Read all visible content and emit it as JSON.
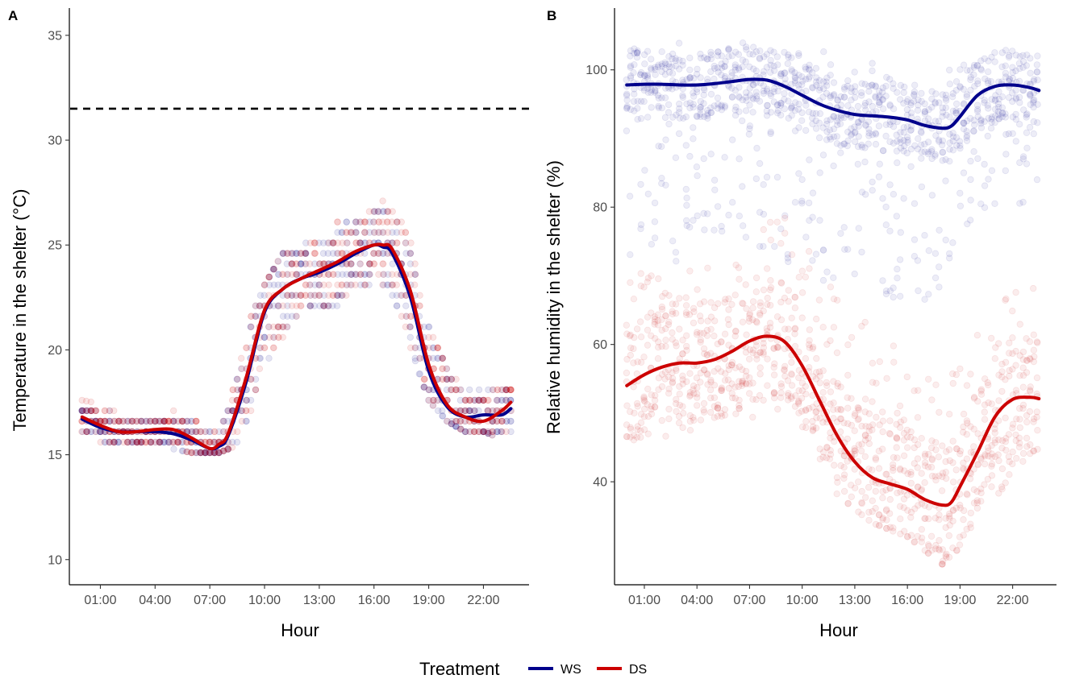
{
  "legend": {
    "title": "Treatment",
    "entries": [
      {
        "label": "WS",
        "color": "#00008B"
      },
      {
        "label": "DS",
        "color": "#CC0000"
      }
    ]
  },
  "chart_data": [
    {
      "type": "scatter",
      "panel_label": "A",
      "xlabel": "Hour",
      "ylabel": "Temperature in the shelter (°C)",
      "x_ticks": [
        "01:00",
        "04:00",
        "07:00",
        "10:00",
        "13:00",
        "16:00",
        "19:00",
        "22:00"
      ],
      "x_tick_hours": [
        1,
        4,
        7,
        10,
        13,
        16,
        19,
        22
      ],
      "xlim": [
        -0.7,
        24.5
      ],
      "y_ticks": [
        10,
        15,
        20,
        25,
        30,
        35
      ],
      "ylim": [
        8.8,
        36.3
      ],
      "grid": false,
      "reference_line": {
        "y": 31.5,
        "style": "dashed",
        "color": "#000000"
      },
      "series": [
        {
          "name": "WS",
          "color": "#00008B",
          "smooth_x": [
            0,
            1,
            2,
            3,
            4,
            5,
            6,
            7,
            7.5,
            8,
            9,
            10,
            11,
            12,
            13,
            14,
            15,
            16,
            16.5,
            17,
            18,
            19,
            20,
            21,
            22,
            23,
            23.5
          ],
          "smooth_y": [
            16.7,
            16.3,
            16.1,
            16.1,
            16.1,
            16.0,
            15.7,
            15.3,
            15.4,
            15.9,
            18.5,
            21.8,
            22.9,
            23.4,
            23.7,
            24.1,
            24.6,
            25.0,
            24.9,
            24.6,
            22.5,
            19.0,
            17.3,
            16.8,
            16.9,
            16.9,
            17.2
          ],
          "points": {
            "x_hours": [
              0,
              23.5
            ],
            "y_range_by_hour": [
              {
                "x": 0,
                "y_min": 15.6,
                "y_max": 17.6
              },
              {
                "x": 3,
                "y_min": 15.6,
                "y_max": 17.1
              },
              {
                "x": 6,
                "y_min": 15.1,
                "y_max": 17.1
              },
              {
                "x": 7.5,
                "y_min": 15.1,
                "y_max": 16.6
              },
              {
                "x": 9,
                "y_min": 15.6,
                "y_max": 21.1
              },
              {
                "x": 10,
                "y_min": 17.6,
                "y_max": 23.1
              },
              {
                "x": 11,
                "y_min": 19.1,
                "y_max": 24.6
              },
              {
                "x": 12,
                "y_min": 21.6,
                "y_max": 25.1
              },
              {
                "x": 13,
                "y_min": 21.6,
                "y_max": 25.6
              },
              {
                "x": 14,
                "y_min": 21.6,
                "y_max": 26.1
              },
              {
                "x": 15,
                "y_min": 22.6,
                "y_max": 26.6
              },
              {
                "x": 16,
                "y_min": 23.1,
                "y_max": 27.1
              },
              {
                "x": 17,
                "y_min": 22.6,
                "y_max": 27.6
              },
              {
                "x": 18,
                "y_min": 20.1,
                "y_max": 26.1
              },
              {
                "x": 19,
                "y_min": 17.6,
                "y_max": 23.1
              },
              {
                "x": 20,
                "y_min": 16.6,
                "y_max": 20.6
              },
              {
                "x": 21,
                "y_min": 16.1,
                "y_max": 19.1
              },
              {
                "x": 22,
                "y_min": 16.1,
                "y_max": 19.1
              },
              {
                "x": 23.5,
                "y_min": 15.6,
                "y_max": 18.1
              }
            ]
          }
        },
        {
          "name": "DS",
          "color": "#CC0000",
          "smooth_x": [
            0,
            1,
            2,
            3,
            4,
            5,
            6,
            7,
            7.5,
            8,
            9,
            10,
            11,
            12,
            13,
            14,
            15,
            16,
            16.5,
            17,
            18,
            19,
            20,
            21,
            22,
            23,
            23.5
          ],
          "smooth_y": [
            16.8,
            16.4,
            16.1,
            16.1,
            16.2,
            16.2,
            15.8,
            15.3,
            15.5,
            16.0,
            18.7,
            21.9,
            22.9,
            23.4,
            23.8,
            24.2,
            24.7,
            25.0,
            25.0,
            24.8,
            22.8,
            19.3,
            17.4,
            16.8,
            16.6,
            17.1,
            17.5
          ],
          "points": {
            "x_hours": [
              0,
              23.5
            ],
            "y_range_by_hour": [
              {
                "x": 0,
                "y_min": 15.6,
                "y_max": 17.6
              },
              {
                "x": 3,
                "y_min": 15.6,
                "y_max": 17.1
              },
              {
                "x": 6,
                "y_min": 15.1,
                "y_max": 17.1
              },
              {
                "x": 7.5,
                "y_min": 15.1,
                "y_max": 16.6
              },
              {
                "x": 9,
                "y_min": 15.6,
                "y_max": 21.1
              },
              {
                "x": 10,
                "y_min": 17.6,
                "y_max": 23.1
              },
              {
                "x": 11,
                "y_min": 19.1,
                "y_max": 24.6
              },
              {
                "x": 12,
                "y_min": 21.6,
                "y_max": 25.1
              },
              {
                "x": 13,
                "y_min": 21.6,
                "y_max": 25.6
              },
              {
                "x": 14,
                "y_min": 21.6,
                "y_max": 26.1
              },
              {
                "x": 15,
                "y_min": 22.6,
                "y_max": 26.6
              },
              {
                "x": 16,
                "y_min": 23.1,
                "y_max": 27.1
              },
              {
                "x": 17,
                "y_min": 22.6,
                "y_max": 27.6
              },
              {
                "x": 18,
                "y_min": 20.1,
                "y_max": 26.1
              },
              {
                "x": 19,
                "y_min": 17.6,
                "y_max": 23.1
              },
              {
                "x": 20,
                "y_min": 16.6,
                "y_max": 20.6
              },
              {
                "x": 21,
                "y_min": 16.1,
                "y_max": 19.1
              },
              {
                "x": 22,
                "y_min": 16.1,
                "y_max": 19.1
              },
              {
                "x": 23.5,
                "y_min": 15.6,
                "y_max": 18.1
              }
            ]
          }
        }
      ]
    },
    {
      "type": "scatter",
      "panel_label": "B",
      "xlabel": "Hour",
      "ylabel": "Relative humidity in the shelter (%)",
      "x_ticks": [
        "01:00",
        "04:00",
        "07:00",
        "10:00",
        "13:00",
        "16:00",
        "19:00",
        "22:00"
      ],
      "x_tick_hours": [
        1,
        4,
        7,
        10,
        13,
        16,
        19,
        22
      ],
      "xlim": [
        -0.7,
        24.5
      ],
      "y_ticks": [
        40,
        60,
        80,
        100
      ],
      "ylim": [
        25,
        109
      ],
      "grid": false,
      "series": [
        {
          "name": "WS",
          "color": "#00008B",
          "smooth_x": [
            0,
            1,
            2,
            3,
            4,
            5,
            6,
            7,
            8,
            9,
            10,
            11,
            12,
            13,
            14,
            15,
            16,
            17,
            18,
            18.5,
            19,
            20,
            21,
            22,
            23,
            23.5
          ],
          "smooth_y": [
            97.8,
            97.9,
            97.9,
            97.8,
            97.8,
            98.0,
            98.3,
            98.6,
            98.5,
            97.6,
            96.3,
            95.0,
            94.1,
            93.5,
            93.3,
            93.1,
            92.7,
            91.9,
            91.5,
            91.8,
            93.2,
            96.3,
            97.6,
            97.8,
            97.4,
            97.0
          ],
          "points": {
            "x_hours": [
              0,
              23.5
            ],
            "y_range_by_hour": [
              {
                "x": 0,
                "y_min": 73,
                "y_max": 104.5
              },
              {
                "x": 3,
                "y_min": 72,
                "y_max": 104
              },
              {
                "x": 6,
                "y_min": 74,
                "y_max": 104
              },
              {
                "x": 9,
                "y_min": 72,
                "y_max": 104.5
              },
              {
                "x": 12,
                "y_min": 68,
                "y_max": 102
              },
              {
                "x": 15,
                "y_min": 66,
                "y_max": 101
              },
              {
                "x": 17.5,
                "y_min": 66,
                "y_max": 101
              },
              {
                "x": 19,
                "y_min": 76,
                "y_max": 101
              },
              {
                "x": 21,
                "y_min": 79,
                "y_max": 103
              },
              {
                "x": 23.5,
                "y_min": 79,
                "y_max": 104
              }
            ]
          }
        },
        {
          "name": "DS",
          "color": "#CC0000",
          "smooth_x": [
            0,
            1,
            2,
            3,
            4,
            5,
            6,
            7,
            8,
            9,
            10,
            11,
            12,
            13,
            14,
            15,
            16,
            17,
            18,
            18.5,
            19,
            20,
            21,
            22,
            23,
            23.5
          ],
          "smooth_y": [
            54.0,
            55.6,
            56.7,
            57.3,
            57.3,
            57.8,
            59.0,
            60.5,
            61.2,
            60.4,
            56.9,
            51.8,
            46.7,
            42.9,
            40.6,
            39.7,
            38.9,
            37.4,
            36.6,
            37.0,
            39.3,
            44.3,
            49.5,
            52.0,
            52.3,
            52.1
          ],
          "points": {
            "x_hours": [
              0,
              23.5
            ],
            "y_range_by_hour": [
              {
                "x": 0,
                "y_min": 46,
                "y_max": 71
              },
              {
                "x": 3,
                "y_min": 46,
                "y_max": 71
              },
              {
                "x": 6,
                "y_min": 48,
                "y_max": 72
              },
              {
                "x": 8.5,
                "y_min": 50,
                "y_max": 80
              },
              {
                "x": 10,
                "y_min": 48,
                "y_max": 76
              },
              {
                "x": 12,
                "y_min": 38,
                "y_max": 67
              },
              {
                "x": 14,
                "y_min": 34,
                "y_max": 64
              },
              {
                "x": 16,
                "y_min": 32,
                "y_max": 58
              },
              {
                "x": 18,
                "y_min": 28,
                "y_max": 54
              },
              {
                "x": 20,
                "y_min": 33,
                "y_max": 62
              },
              {
                "x": 22,
                "y_min": 41,
                "y_max": 68
              },
              {
                "x": 23.5,
                "y_min": 45,
                "y_max": 71
              }
            ]
          }
        }
      ]
    }
  ]
}
